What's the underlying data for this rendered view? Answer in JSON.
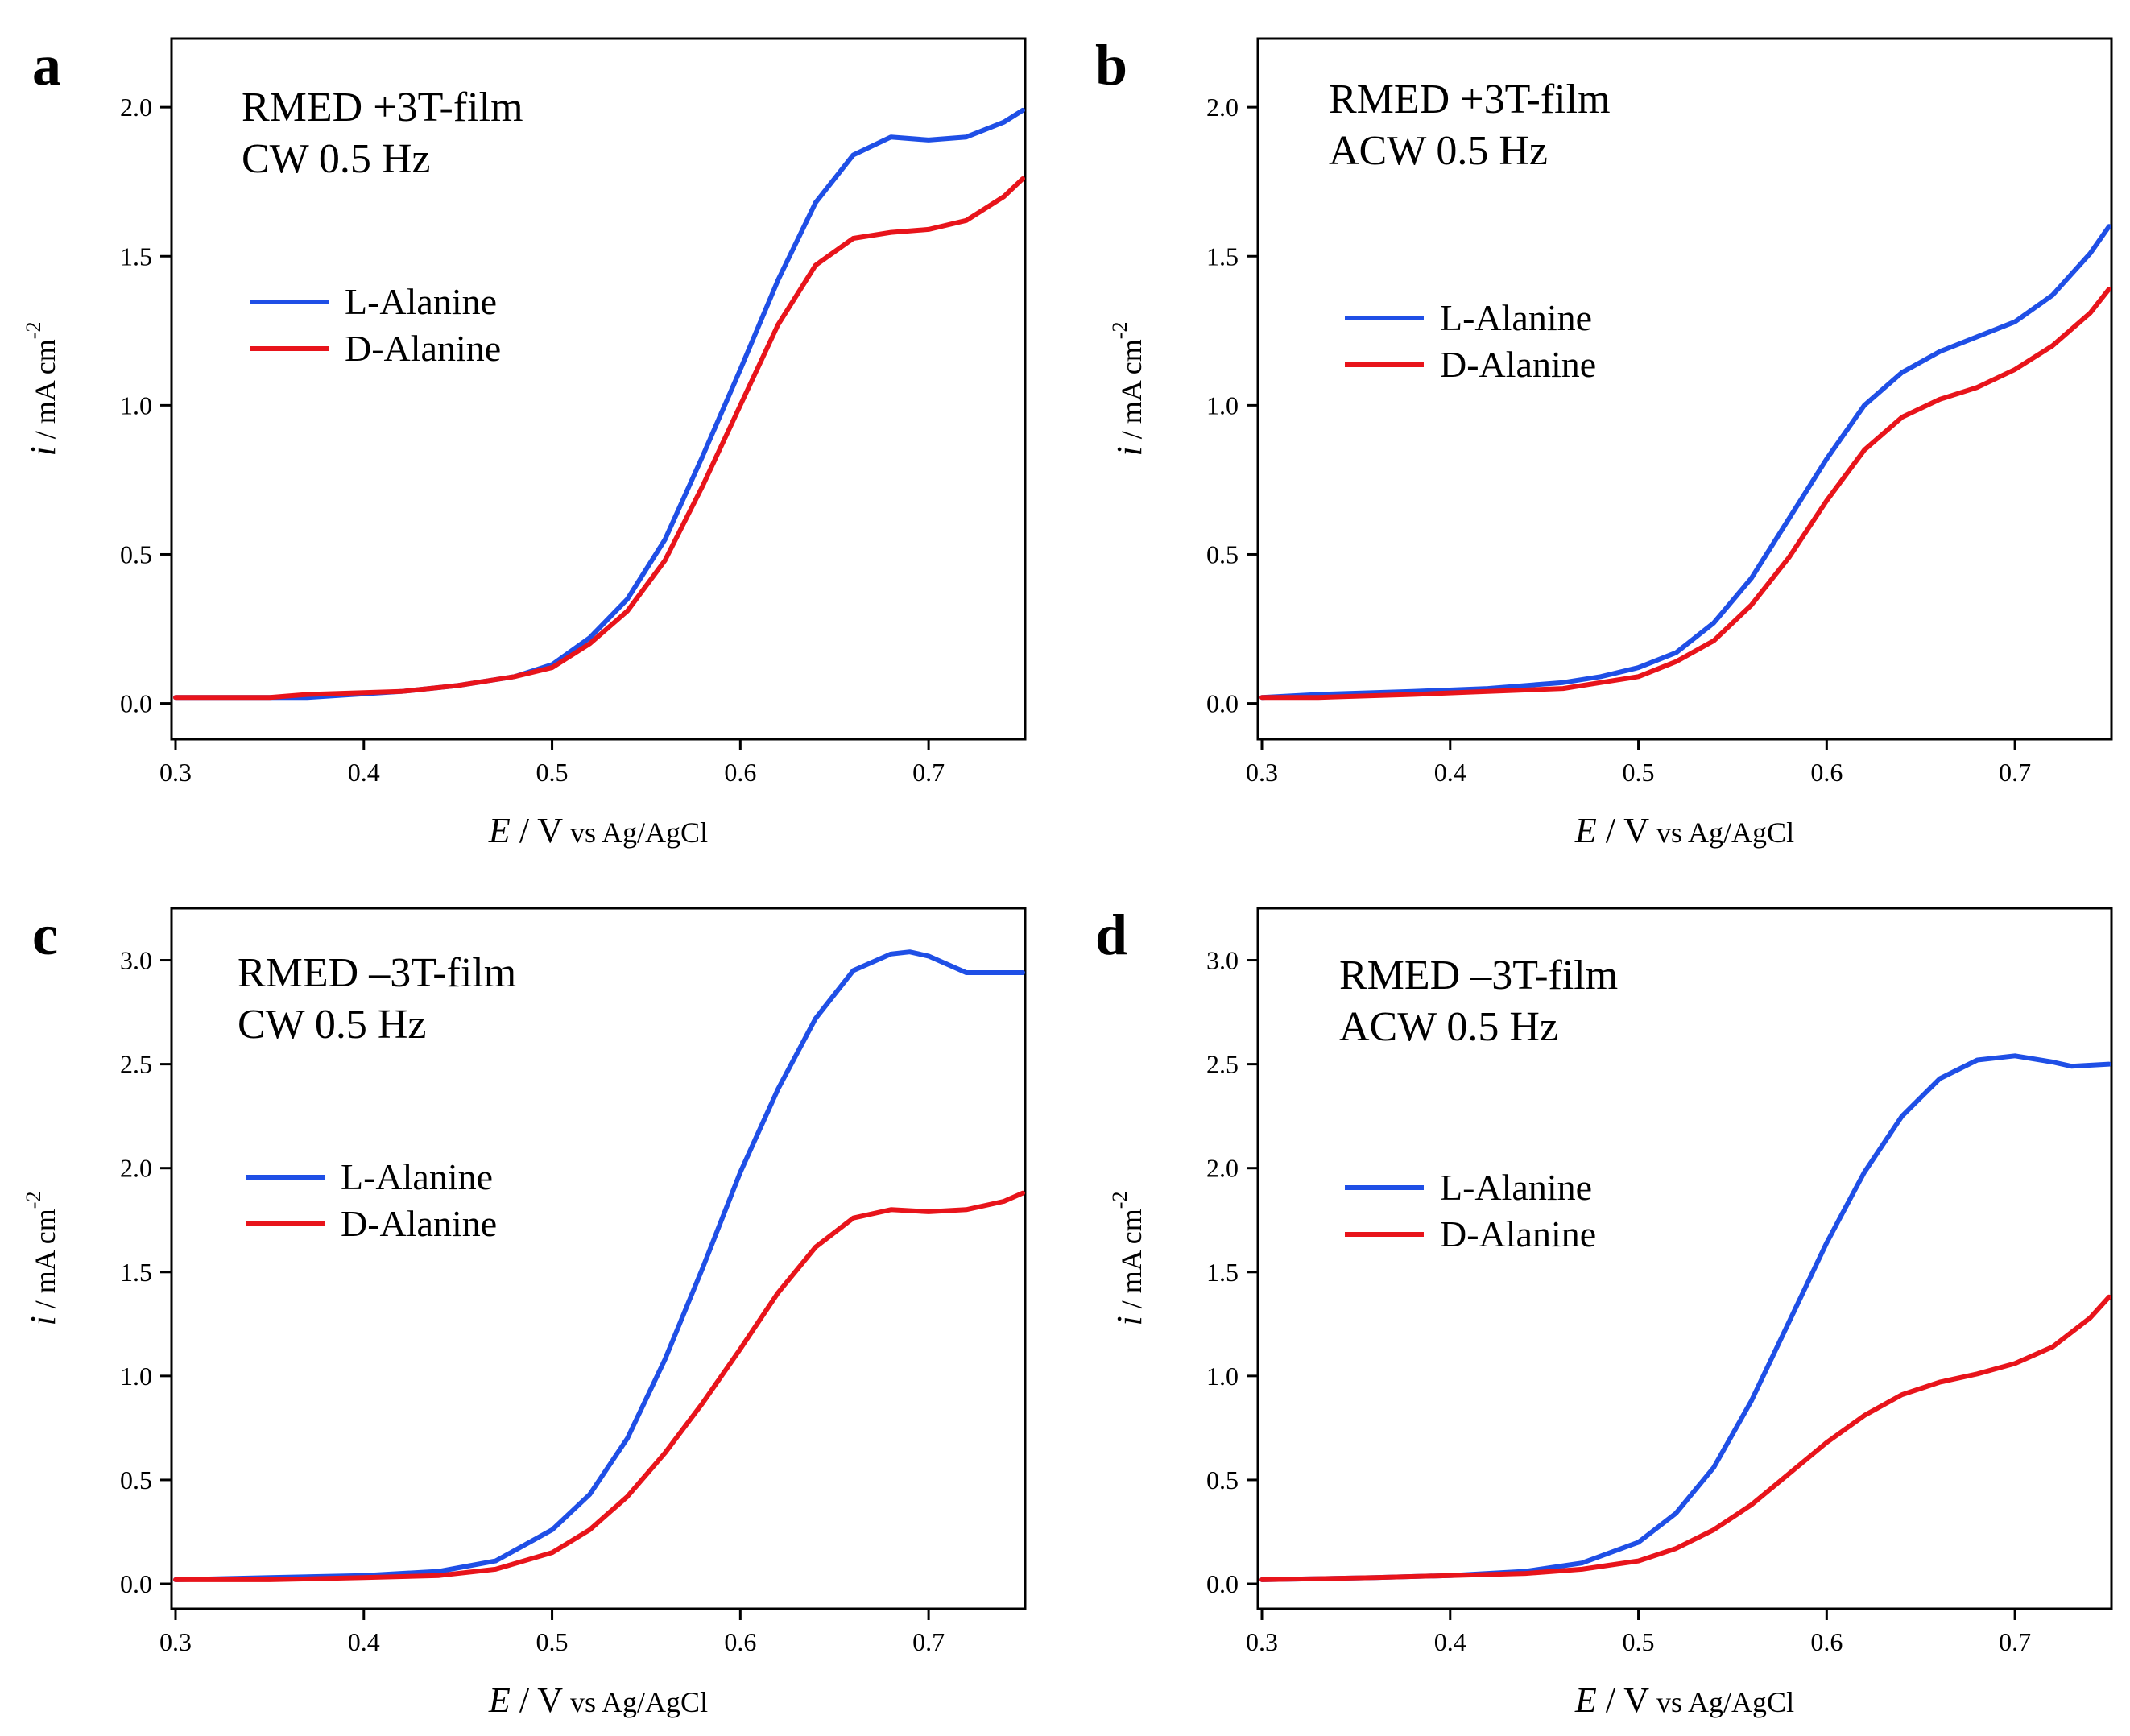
{
  "figure": {
    "colors": {
      "l_alanine": "#1f4fe6",
      "d_alanine": "#e8141b"
    }
  },
  "chart_data": [
    {
      "panel": "a",
      "type": "line",
      "annotation": [
        "RMED +3T-film",
        "CW 0.5 Hz"
      ],
      "xlabel": {
        "var": "E",
        "unit": " / V",
        "ref": " vs Ag/AgCl"
      },
      "ylabel": {
        "var": "i",
        "unit": " / mA cm",
        "sup": "-2"
      },
      "xlim": [
        0.3,
        0.75
      ],
      "ylim": [
        -0.12,
        2.23
      ],
      "xticks": [
        "0.3",
        "0.4",
        "0.5",
        "0.6",
        "0.7"
      ],
      "yticks": [
        "0.0",
        "0.5",
        "1.0",
        "1.5",
        "2.0"
      ],
      "legend": [
        "L-Alanine",
        "D-Alanine"
      ],
      "series": [
        {
          "name": "L-Alanine",
          "x": [
            0.3,
            0.35,
            0.37,
            0.42,
            0.45,
            0.48,
            0.5,
            0.52,
            0.54,
            0.56,
            0.58,
            0.6,
            0.62,
            0.64,
            0.66,
            0.68,
            0.7,
            0.72,
            0.74,
            0.75
          ],
          "y": [
            0.02,
            0.02,
            0.02,
            0.04,
            0.06,
            0.09,
            0.13,
            0.22,
            0.35,
            0.55,
            0.83,
            1.12,
            1.42,
            1.68,
            1.84,
            1.9,
            1.89,
            1.9,
            1.95,
            1.99
          ]
        },
        {
          "name": "D-Alanine",
          "x": [
            0.3,
            0.35,
            0.37,
            0.42,
            0.45,
            0.48,
            0.5,
            0.52,
            0.54,
            0.56,
            0.58,
            0.6,
            0.62,
            0.64,
            0.66,
            0.68,
            0.7,
            0.72,
            0.74,
            0.75
          ],
          "y": [
            0.02,
            0.02,
            0.03,
            0.04,
            0.06,
            0.09,
            0.12,
            0.2,
            0.31,
            0.48,
            0.73,
            1.0,
            1.27,
            1.47,
            1.56,
            1.58,
            1.59,
            1.62,
            1.7,
            1.76
          ]
        }
      ]
    },
    {
      "panel": "b",
      "type": "line",
      "annotation": [
        "RMED +3T-film",
        "ACW 0.5 Hz"
      ],
      "xlabel": {
        "var": "E",
        "unit": " / V",
        "ref": " vs Ag/AgCl"
      },
      "ylabel": {
        "var": "i",
        "unit": " / mA cm",
        "sup": "-2"
      },
      "xlim": [
        0.3,
        0.75
      ],
      "ylim": [
        -0.12,
        2.23
      ],
      "xticks": [
        "0.3",
        "0.4",
        "0.5",
        "0.6",
        "0.7"
      ],
      "yticks": [
        "0.0",
        "0.5",
        "1.0",
        "1.5",
        "2.0"
      ],
      "legend": [
        "L-Alanine",
        "D-Alanine"
      ],
      "series": [
        {
          "name": "L-Alanine",
          "x": [
            0.3,
            0.33,
            0.38,
            0.42,
            0.46,
            0.48,
            0.5,
            0.52,
            0.54,
            0.56,
            0.58,
            0.6,
            0.62,
            0.64,
            0.66,
            0.68,
            0.7,
            0.72,
            0.74,
            0.75
          ],
          "y": [
            0.02,
            0.03,
            0.04,
            0.05,
            0.07,
            0.09,
            0.12,
            0.17,
            0.27,
            0.42,
            0.62,
            0.82,
            1.0,
            1.11,
            1.18,
            1.23,
            1.28,
            1.37,
            1.51,
            1.6
          ]
        },
        {
          "name": "D-Alanine",
          "x": [
            0.3,
            0.33,
            0.38,
            0.42,
            0.46,
            0.48,
            0.5,
            0.52,
            0.54,
            0.56,
            0.58,
            0.6,
            0.62,
            0.64,
            0.66,
            0.68,
            0.7,
            0.72,
            0.74,
            0.75
          ],
          "y": [
            0.02,
            0.02,
            0.03,
            0.04,
            0.05,
            0.07,
            0.09,
            0.14,
            0.21,
            0.33,
            0.49,
            0.68,
            0.85,
            0.96,
            1.02,
            1.06,
            1.12,
            1.2,
            1.31,
            1.39
          ]
        }
      ]
    },
    {
      "panel": "c",
      "type": "line",
      "annotation": [
        "RMED –3T-film",
        "CW 0.5 Hz"
      ],
      "xlabel": {
        "var": "E",
        "unit": " / V",
        "ref": " vs Ag/AgCl"
      },
      "ylabel": {
        "var": "i",
        "unit": " / mA cm",
        "sup": "-2"
      },
      "xlim": [
        0.3,
        0.75
      ],
      "ylim": [
        -0.12,
        3.25
      ],
      "xticks": [
        "0.3",
        "0.4",
        "0.5",
        "0.6",
        "0.7"
      ],
      "yticks": [
        "0.0",
        "0.5",
        "1.0",
        "1.5",
        "2.0",
        "2.5",
        "3.0"
      ],
      "legend": [
        "L-Alanine",
        "D-Alanine"
      ],
      "series": [
        {
          "name": "L-Alanine",
          "x": [
            0.3,
            0.35,
            0.4,
            0.44,
            0.47,
            0.5,
            0.52,
            0.54,
            0.56,
            0.58,
            0.6,
            0.62,
            0.64,
            0.66,
            0.68,
            0.69,
            0.7,
            0.72,
            0.74,
            0.75
          ],
          "y": [
            0.02,
            0.03,
            0.04,
            0.06,
            0.11,
            0.26,
            0.43,
            0.7,
            1.08,
            1.52,
            1.98,
            2.38,
            2.72,
            2.95,
            3.03,
            3.04,
            3.02,
            2.94,
            2.94,
            2.94
          ]
        },
        {
          "name": "D-Alanine",
          "x": [
            0.3,
            0.35,
            0.4,
            0.44,
            0.47,
            0.5,
            0.52,
            0.54,
            0.56,
            0.58,
            0.6,
            0.62,
            0.64,
            0.66,
            0.68,
            0.7,
            0.72,
            0.74,
            0.75
          ],
          "y": [
            0.02,
            0.02,
            0.03,
            0.04,
            0.07,
            0.15,
            0.26,
            0.42,
            0.63,
            0.87,
            1.13,
            1.4,
            1.62,
            1.76,
            1.8,
            1.79,
            1.8,
            1.84,
            1.88
          ]
        }
      ]
    },
    {
      "panel": "d",
      "type": "line",
      "annotation": [
        "RMED –3T-film",
        "ACW 0.5 Hz"
      ],
      "xlabel": {
        "var": "E",
        "unit": " / V",
        "ref": " vs Ag/AgCl"
      },
      "ylabel": {
        "var": "i",
        "unit": " / mA cm",
        "sup": "-2"
      },
      "xlim": [
        0.3,
        0.75
      ],
      "ylim": [
        -0.12,
        3.25
      ],
      "xticks": [
        "0.3",
        "0.4",
        "0.5",
        "0.6",
        "0.7"
      ],
      "yticks": [
        "0.0",
        "0.5",
        "1.0",
        "1.5",
        "2.0",
        "2.5",
        "3.0"
      ],
      "legend": [
        "L-Alanine",
        "D-Alanine"
      ],
      "series": [
        {
          "name": "L-Alanine",
          "x": [
            0.3,
            0.36,
            0.4,
            0.44,
            0.47,
            0.5,
            0.52,
            0.54,
            0.56,
            0.58,
            0.6,
            0.62,
            0.64,
            0.66,
            0.68,
            0.7,
            0.72,
            0.73,
            0.75
          ],
          "y": [
            0.02,
            0.03,
            0.04,
            0.06,
            0.1,
            0.2,
            0.34,
            0.56,
            0.88,
            1.26,
            1.64,
            1.98,
            2.25,
            2.43,
            2.52,
            2.54,
            2.51,
            2.49,
            2.5
          ]
        },
        {
          "name": "D-Alanine",
          "x": [
            0.3,
            0.36,
            0.4,
            0.44,
            0.47,
            0.5,
            0.52,
            0.54,
            0.56,
            0.58,
            0.6,
            0.62,
            0.64,
            0.66,
            0.68,
            0.7,
            0.72,
            0.74,
            0.75
          ],
          "y": [
            0.02,
            0.03,
            0.04,
            0.05,
            0.07,
            0.11,
            0.17,
            0.26,
            0.38,
            0.53,
            0.68,
            0.81,
            0.91,
            0.97,
            1.01,
            1.06,
            1.14,
            1.28,
            1.38
          ]
        }
      ]
    }
  ]
}
